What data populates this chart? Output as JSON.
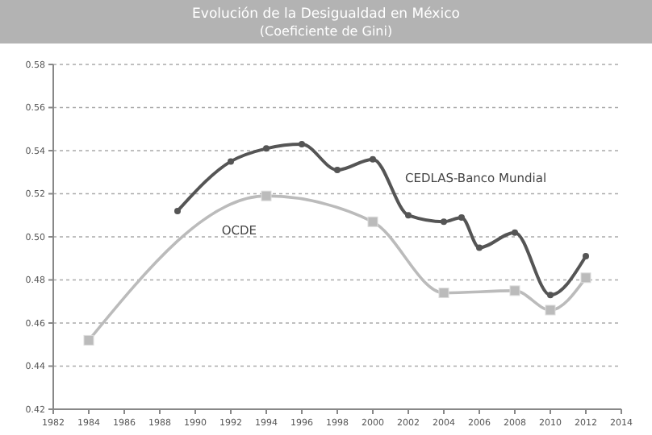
{
  "chart_data": {
    "type": "line",
    "title": "Evolución de la Desigualdad en México",
    "subtitle": "(Coeficiente de Gini)",
    "xlim": [
      1982,
      2014
    ],
    "xticks": [
      1982,
      1984,
      1986,
      1988,
      1990,
      1992,
      1994,
      1996,
      1998,
      2000,
      2002,
      2004,
      2006,
      2008,
      2010,
      2012,
      2014
    ],
    "ylim": [
      0.42,
      0.58
    ],
    "yticks": [
      {
        "value": 0.42,
        "label": "0.42"
      },
      {
        "value": 0.44,
        "label": "0.44"
      },
      {
        "value": 0.46,
        "label": "0.46"
      },
      {
        "value": 0.48,
        "label": "0.48"
      },
      {
        "value": 0.5,
        "label": "0.50"
      },
      {
        "value": 0.52,
        "label": "0.52"
      },
      {
        "value": 0.54,
        "label": "0.54"
      },
      {
        "value": 0.56,
        "label": "0.56"
      },
      {
        "value": 0.58,
        "label": "0.58"
      }
    ],
    "grid": "y",
    "legend": false,
    "series": [
      {
        "name": "CEDLAS-Banco Mundial",
        "color": "#555555",
        "marker": "circle",
        "x": [
          1989,
          1992,
          1994,
          1996,
          1998,
          2000,
          2002,
          2004,
          2005,
          2006,
          2008,
          2010,
          2012
        ],
        "values": [
          0.512,
          0.535,
          0.541,
          0.543,
          0.531,
          0.536,
          0.51,
          0.507,
          0.509,
          0.495,
          0.502,
          0.473,
          0.491
        ]
      },
      {
        "name": "OCDE",
        "color": "#bbbbbb",
        "marker": "square",
        "x": [
          1984,
          1994,
          2000,
          2004,
          2008,
          2010,
          2012
        ],
        "values": [
          0.452,
          0.519,
          0.507,
          0.474,
          0.475,
          0.466,
          0.481
        ]
      }
    ]
  }
}
